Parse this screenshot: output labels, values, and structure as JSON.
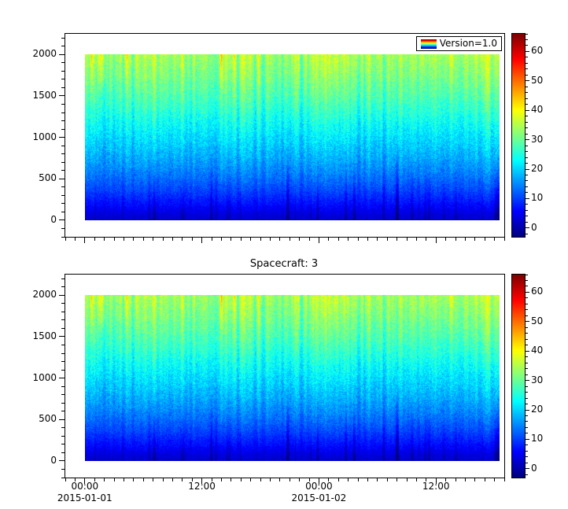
{
  "figure": {
    "background": "#ffffff"
  },
  "chart_data": [
    {
      "type": "heatmap",
      "title": "",
      "legend_label": "Version=1.0",
      "colormap": {
        "name": "jet",
        "clim": [
          -3,
          66
        ]
      },
      "colorbar_ticks": [
        0,
        10,
        20,
        30,
        40,
        50,
        60
      ],
      "colorbar_minor_step": 2,
      "x_axis": {
        "range_hours": [
          -2,
          43
        ],
        "start": "2015-01-01 00:00",
        "minor_step_hours": 1,
        "show_labels": false,
        "major_ticks": [
          {
            "hour": 0,
            "label": "00:00",
            "date": "2015-01-01"
          },
          {
            "hour": 12,
            "label": "12:00"
          },
          {
            "hour": 24,
            "label": "00:00",
            "date": "2015-01-02"
          },
          {
            "hour": 36,
            "label": "12:00"
          }
        ]
      },
      "y_axis": {
        "range": [
          -200,
          2250
        ],
        "major_ticks": [
          0,
          500,
          1000,
          1500,
          2000
        ],
        "minor_step": 100
      },
      "data": {
        "x_hours": [
          0,
          42.5
        ],
        "y_extent": [
          0,
          2000
        ],
        "profile_altitudes": [
          0,
          80,
          200,
          350,
          500,
          700,
          900,
          1100,
          1300,
          1500,
          1750,
          2000
        ],
        "profile_values": [
          2,
          3.5,
          6.5,
          10,
          13,
          16.5,
          19.5,
          22.5,
          25.5,
          28.5,
          31.5,
          34
        ],
        "column_variation": 0.18,
        "noise_amplitude": 3.5,
        "seed": 42
      }
    },
    {
      "type": "heatmap",
      "title": "Spacecraft: 3",
      "colormap": {
        "name": "jet",
        "clim": [
          -3,
          66
        ]
      },
      "colorbar_ticks": [
        0,
        10,
        20,
        30,
        40,
        50,
        60
      ],
      "colorbar_minor_step": 2,
      "x_axis": {
        "range_hours": [
          -2,
          43
        ],
        "start": "2015-01-01 00:00",
        "minor_step_hours": 1,
        "show_labels": true,
        "major_ticks": [
          {
            "hour": 0,
            "label": "00:00",
            "date": "2015-01-01"
          },
          {
            "hour": 12,
            "label": "12:00"
          },
          {
            "hour": 24,
            "label": "00:00",
            "date": "2015-01-02"
          },
          {
            "hour": 36,
            "label": "12:00"
          }
        ]
      },
      "y_axis": {
        "range": [
          -200,
          2250
        ],
        "major_ticks": [
          0,
          500,
          1000,
          1500,
          2000
        ],
        "minor_step": 100
      },
      "data": {
        "x_hours": [
          0,
          42.5
        ],
        "y_extent": [
          0,
          2000
        ],
        "profile_altitudes": [
          0,
          80,
          200,
          350,
          500,
          700,
          900,
          1100,
          1300,
          1500,
          1750,
          2000
        ],
        "profile_values": [
          2,
          3.5,
          6.5,
          10,
          13,
          16.5,
          19.5,
          22.5,
          25.5,
          28.5,
          31.5,
          34
        ],
        "column_variation": 0.18,
        "noise_amplitude": 3.5,
        "seed": 42
      }
    }
  ]
}
